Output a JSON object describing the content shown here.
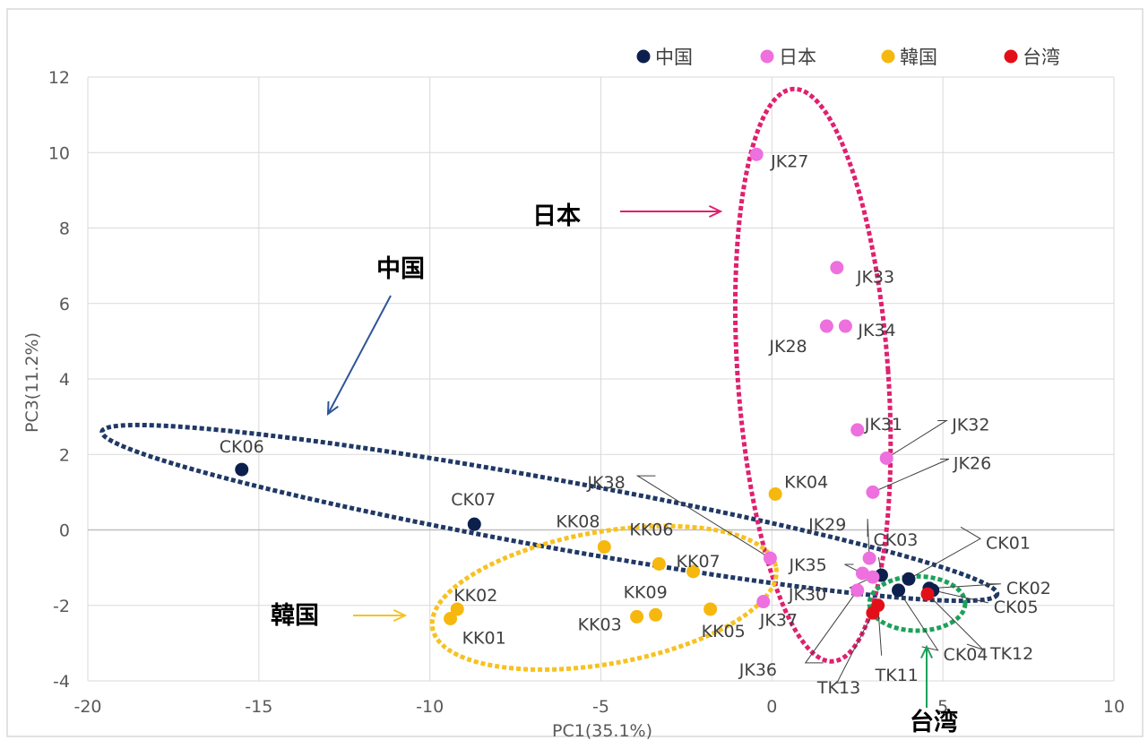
{
  "chart_data": {
    "type": "scatter",
    "title": "",
    "xlabel": "PC1(35.1%)",
    "ylabel": "PC3(11.2%)",
    "xlim": [
      -20,
      10
    ],
    "ylim": [
      -4,
      12
    ],
    "x_ticks": [
      -20,
      -15,
      -10,
      -5,
      0,
      5,
      10
    ],
    "y_ticks": [
      -4,
      -2,
      0,
      2,
      4,
      6,
      8,
      10,
      12
    ],
    "grid": true,
    "legend_position": "top-right",
    "colors": {
      "中国": "#0d1f4d",
      "日本": "#ee6fde",
      "韓国": "#f6b80e",
      "台湾": "#e30f18"
    },
    "series": [
      {
        "name": "中国",
        "points": [
          {
            "label": "CK06",
            "x": -15.5,
            "y": 1.6
          },
          {
            "label": "CK07",
            "x": -8.7,
            "y": 0.15
          },
          {
            "label": "CK03",
            "x": 3.2,
            "y": -1.2
          },
          {
            "label": "CK01",
            "x": 4.0,
            "y": -1.3
          },
          {
            "label": "CK02",
            "x": 4.6,
            "y": -1.55
          },
          {
            "label": "CK05",
            "x": 4.7,
            "y": -1.6
          },
          {
            "label": "CK04",
            "x": 3.7,
            "y": -1.6
          }
        ]
      },
      {
        "name": "日本",
        "points": [
          {
            "label": "JK27",
            "x": -0.45,
            "y": 9.95
          },
          {
            "label": "JK33",
            "x": 1.9,
            "y": 6.95
          },
          {
            "label": "JK28",
            "x": 1.6,
            "y": 5.4
          },
          {
            "label": "JK34",
            "x": 2.15,
            "y": 5.4
          },
          {
            "label": "JK31",
            "x": 2.5,
            "y": 2.65
          },
          {
            "label": "JK32",
            "x": 3.35,
            "y": 1.9
          },
          {
            "label": "JK26",
            "x": 2.95,
            "y": 1.0
          },
          {
            "label": "JK38",
            "x": -0.05,
            "y": -0.75
          },
          {
            "label": "JK29",
            "x": 2.85,
            "y": -0.75
          },
          {
            "label": "JK35",
            "x": 2.65,
            "y": -1.15
          },
          {
            "label": "JK30",
            "x": 2.95,
            "y": -1.25
          },
          {
            "label": "JK36",
            "x": 2.5,
            "y": -1.6
          },
          {
            "label": "JK37",
            "x": -0.25,
            "y": -1.9
          }
        ]
      },
      {
        "name": "韓国",
        "points": [
          {
            "label": "KK04",
            "x": 0.1,
            "y": 0.95
          },
          {
            "label": "KK08",
            "x": -4.9,
            "y": -0.45
          },
          {
            "label": "KK06",
            "x": -3.3,
            "y": -0.9
          },
          {
            "label": "KK07",
            "x": -2.3,
            "y": -1.1
          },
          {
            "label": "KK02",
            "x": -9.2,
            "y": -2.1
          },
          {
            "label": "KK01",
            "x": -9.4,
            "y": -2.35
          },
          {
            "label": "KK09",
            "x": -3.4,
            "y": -2.25
          },
          {
            "label": "KK03",
            "x": -3.95,
            "y": -2.3
          },
          {
            "label": "KK05",
            "x": -1.8,
            "y": -2.1
          }
        ]
      },
      {
        "name": "台湾",
        "points": [
          {
            "label": "TK12",
            "x": 4.55,
            "y": -1.7
          },
          {
            "label": "TK11",
            "x": 3.1,
            "y": -2.0
          },
          {
            "label": "TK13",
            "x": 2.95,
            "y": -2.2
          }
        ]
      }
    ],
    "annotations": [
      "中国",
      "日本",
      "韓国",
      "台湾"
    ]
  }
}
